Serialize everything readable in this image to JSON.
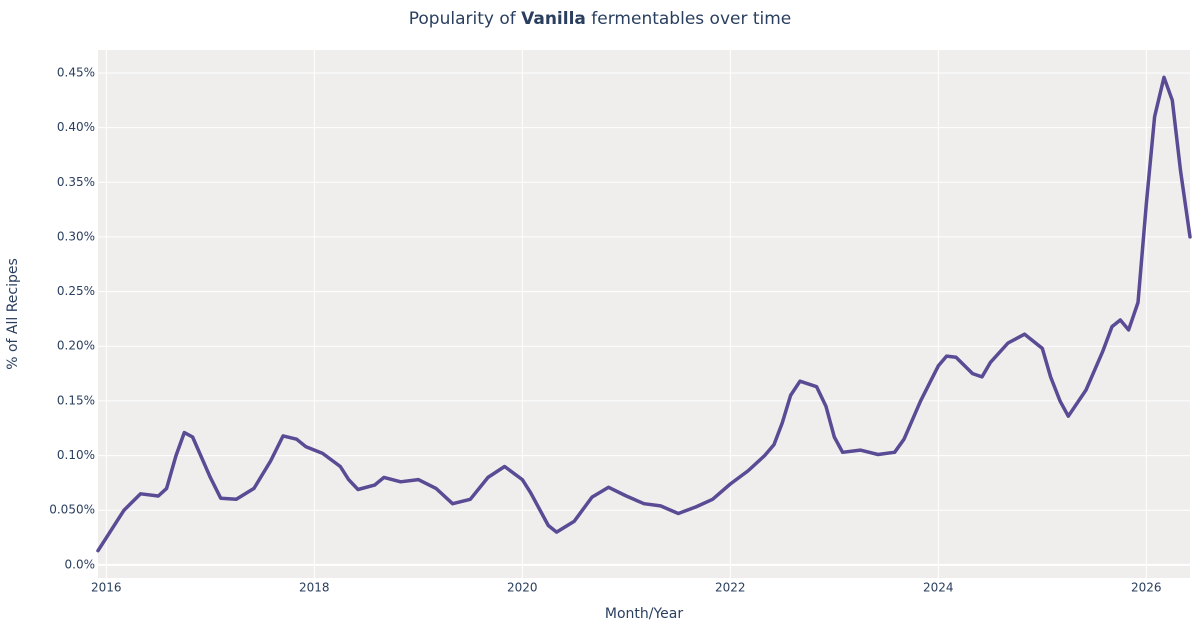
{
  "chart_data": {
    "type": "line",
    "title": [
      "Popularity of ",
      "Vanilla",
      " fermentables over time"
    ],
    "x_label": "Month/Year",
    "y_label": "% of All Recipes",
    "x": [
      2015.92,
      2016.17,
      2016.33,
      2016.5,
      2016.58,
      2016.67,
      2016.75,
      2016.83,
      2017.0,
      2017.1,
      2017.25,
      2017.42,
      2017.58,
      2017.7,
      2017.83,
      2017.92,
      2018.08,
      2018.25,
      2018.33,
      2018.42,
      2018.58,
      2018.67,
      2018.83,
      2019.0,
      2019.17,
      2019.33,
      2019.5,
      2019.67,
      2019.83,
      2020.0,
      2020.08,
      2020.25,
      2020.33,
      2020.5,
      2020.67,
      2020.83,
      2021.0,
      2021.17,
      2021.33,
      2021.5,
      2021.67,
      2021.83,
      2022.0,
      2022.17,
      2022.33,
      2022.42,
      2022.5,
      2022.58,
      2022.67,
      2022.83,
      2022.92,
      2023.0,
      2023.08,
      2023.25,
      2023.42,
      2023.58,
      2023.67,
      2023.83,
      2024.0,
      2024.08,
      2024.17,
      2024.33,
      2024.42,
      2024.5,
      2024.67,
      2024.83,
      2025.0,
      2025.08,
      2025.17,
      2025.25,
      2025.42,
      2025.58,
      2025.67,
      2025.75,
      2025.83,
      2025.92,
      2026.0,
      2026.08,
      2026.17,
      2026.25,
      2026.33,
      2026.42
    ],
    "values": [
      0.013,
      0.05,
      0.065,
      0.063,
      0.07,
      0.1,
      0.121,
      0.117,
      0.08,
      0.061,
      0.06,
      0.07,
      0.095,
      0.118,
      0.115,
      0.108,
      0.102,
      0.09,
      0.078,
      0.069,
      0.073,
      0.08,
      0.076,
      0.078,
      0.07,
      0.056,
      0.06,
      0.08,
      0.09,
      0.078,
      0.066,
      0.036,
      0.03,
      0.04,
      0.062,
      0.071,
      0.063,
      0.056,
      0.054,
      0.047,
      0.053,
      0.06,
      0.074,
      0.086,
      0.1,
      0.11,
      0.13,
      0.155,
      0.168,
      0.163,
      0.145,
      0.117,
      0.103,
      0.105,
      0.101,
      0.103,
      0.115,
      0.15,
      0.182,
      0.191,
      0.19,
      0.175,
      0.172,
      0.185,
      0.203,
      0.211,
      0.198,
      0.172,
      0.15,
      0.136,
      0.16,
      0.195,
      0.218,
      0.224,
      0.215,
      0.24,
      0.33,
      0.41,
      0.446,
      0.425,
      0.36,
      0.3
    ],
    "color": "#5b4a94",
    "xlim": [
      2015.92,
      2026.42
    ],
    "xticks": [
      2016,
      2018,
      2020,
      2022,
      2024,
      2026
    ],
    "ylim": [
      -0.012,
      0.471
    ],
    "yticks": [
      {
        "value": 0,
        "label": "0.0%"
      },
      {
        "value": 0.05,
        "label": "0.050%"
      },
      {
        "value": 0.1,
        "label": "0.10%"
      },
      {
        "value": 0.15,
        "label": "0.15%"
      },
      {
        "value": 0.2,
        "label": "0.20%"
      },
      {
        "value": 0.25,
        "label": "0.25%"
      },
      {
        "value": 0.3,
        "label": "0.30%"
      },
      {
        "value": 0.35,
        "label": "0.35%"
      },
      {
        "value": 0.4,
        "label": "0.40%"
      },
      {
        "value": 0.45,
        "label": "0.45%"
      }
    ],
    "grid": true
  }
}
